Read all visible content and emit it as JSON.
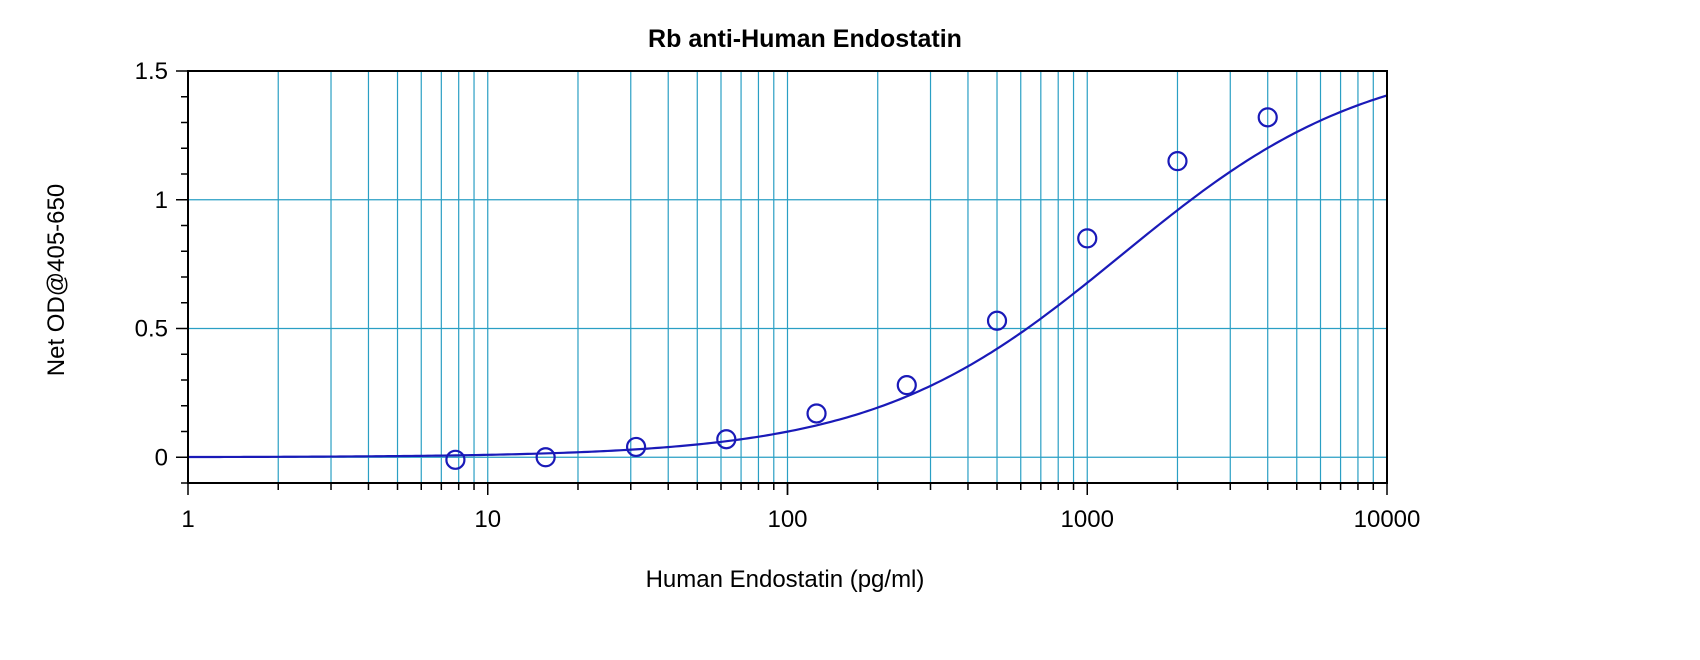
{
  "chart_data": {
    "type": "scatter",
    "title": "Rb anti-Human Endostatin",
    "xlabel": "Human Endostatin (pg/ml)",
    "ylabel": "Net OD@405-650",
    "x_scale": "log",
    "xlim": [
      1,
      10000
    ],
    "ylim": [
      -0.1,
      1.5
    ],
    "x_ticks": [
      {
        "value": 1,
        "label": "1"
      },
      {
        "value": 10,
        "label": "10"
      },
      {
        "value": 100,
        "label": "100"
      },
      {
        "value": 1000,
        "label": "1000"
      },
      {
        "value": 10000,
        "label": "10000"
      }
    ],
    "y_ticks": [
      {
        "value": 0,
        "label": "0"
      },
      {
        "value": 0.5,
        "label": "0.5"
      },
      {
        "value": 1,
        "label": "1"
      },
      {
        "value": 1.5,
        "label": "1.5"
      }
    ],
    "grid": true,
    "legend": "none",
    "colors": {
      "grid": "#2a9fc4",
      "series": "#1a1ab8",
      "axis": "#000000"
    },
    "series": [
      {
        "marker": "open-circle",
        "x": [
          7.8,
          15.6,
          31.25,
          62.5,
          125,
          250,
          500,
          1000,
          2000,
          4000
        ],
        "y": [
          -0.01,
          0.0,
          0.04,
          0.07,
          0.17,
          0.28,
          0.53,
          0.85,
          1.15,
          1.32
        ]
      }
    ],
    "fit_curve": {
      "type": "4PL",
      "bottom": 0.0,
      "top": 1.57,
      "ec50": 1300,
      "hill": 1.05
    }
  }
}
